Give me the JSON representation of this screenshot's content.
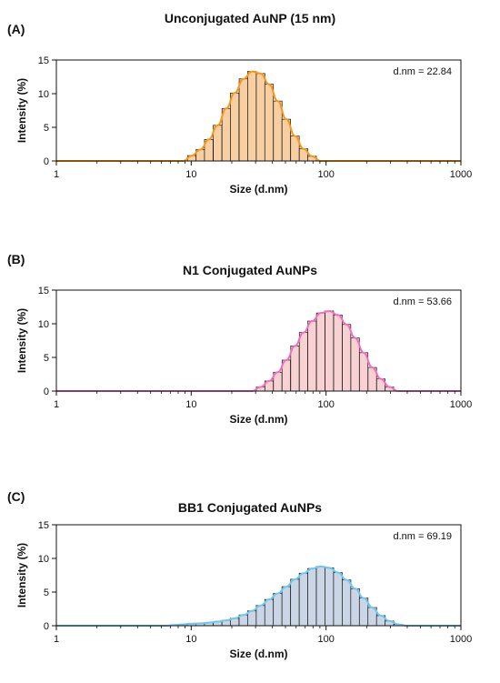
{
  "chart_data": [
    {
      "type": "bar",
      "panel_label": "(A)",
      "title": "Unconjugated AuNP (15 nm)",
      "xlabel": "Size (d.nm)",
      "ylabel": "Intensity (%)",
      "x_scale": "log",
      "xlim": [
        1,
        1000
      ],
      "ylim": [
        0,
        15
      ],
      "xticks": [
        "1",
        "10",
        "100",
        "1000"
      ],
      "yticks": [
        "0",
        "5",
        "10",
        "15"
      ],
      "annotation": "d.nm = 22.84",
      "color": "#F5961E",
      "fill": "#F7CFA3",
      "x": [
        10.1,
        11.7,
        13.5,
        15.7,
        18.2,
        21.0,
        24.4,
        28.2,
        32.7,
        37.8,
        43.8,
        50.7,
        58.8,
        68.1,
        78.8
      ],
      "values": [
        0.8,
        1.7,
        3.2,
        5.3,
        7.8,
        10.1,
        12.2,
        13.3,
        13.0,
        11.4,
        8.9,
        6.2,
        3.7,
        1.8,
        0.7
      ]
    },
    {
      "type": "bar",
      "panel_label": "(B)",
      "title": "N1 Conjugated AuNPs",
      "xlabel": "Size (d.nm)",
      "ylabel": "Intensity (%)",
      "x_scale": "log",
      "xlim": [
        1,
        1000
      ],
      "ylim": [
        0,
        15
      ],
      "xticks": [
        "1",
        "10",
        "100",
        "1000"
      ],
      "yticks": [
        "0",
        "5",
        "10",
        "15"
      ],
      "annotation": "d.nm = 53.66",
      "color": "#EE6FBF",
      "fill": "#F8D2D2",
      "x": [
        32.7,
        37.8,
        43.8,
        50.7,
        58.8,
        68.1,
        78.8,
        91.3,
        105.7,
        122.4,
        141.8,
        164.2,
        190.1,
        220.2,
        255.0,
        295.3
      ],
      "values": [
        0.6,
        1.5,
        2.8,
        4.6,
        6.7,
        8.7,
        10.4,
        11.6,
        11.9,
        11.3,
        9.9,
        7.9,
        5.7,
        3.5,
        1.8,
        0.6
      ]
    },
    {
      "type": "bar",
      "panel_label": "(C)",
      "title": "BB1 Conjugated AuNPs",
      "xlabel": "Size (d.nm)",
      "ylabel": "Intensity (%)",
      "x_scale": "log",
      "xlim": [
        1,
        1000
      ],
      "ylim": [
        0,
        15
      ],
      "xticks": [
        "1",
        "10",
        "100",
        "1000"
      ],
      "yticks": [
        "0",
        "5",
        "10",
        "15"
      ],
      "annotation": "d.nm = 69.19",
      "color": "#6FC6EA",
      "fill": "#CAD6E6",
      "x": [
        7.5,
        8.7,
        10.1,
        11.7,
        13.5,
        15.7,
        18.2,
        21.0,
        24.4,
        28.2,
        32.7,
        37.8,
        43.8,
        50.7,
        58.8,
        68.1,
        78.8,
        91.3,
        105.7,
        122.4,
        141.8,
        164.2,
        190.1,
        220.2,
        255.0,
        295.3,
        341.9
      ],
      "values": [
        0.1,
        0.2,
        0.3,
        0.35,
        0.45,
        0.6,
        0.8,
        1.1,
        1.6,
        2.2,
        3.0,
        3.9,
        4.8,
        5.8,
        6.9,
        7.8,
        8.5,
        8.8,
        8.6,
        7.9,
        6.8,
        5.5,
        4.1,
        2.7,
        1.5,
        0.7,
        0.2
      ]
    }
  ]
}
